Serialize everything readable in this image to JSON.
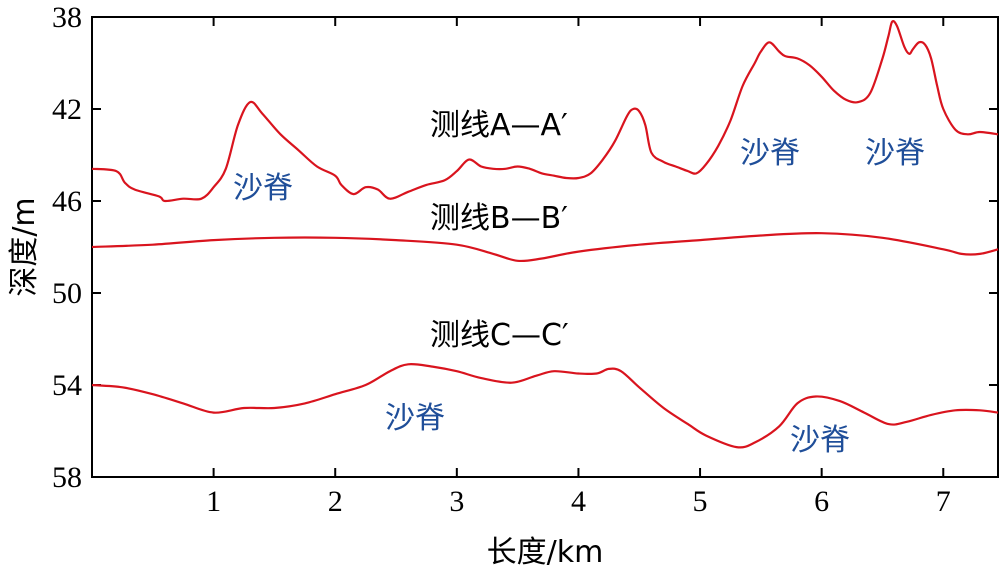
{
  "chart_data": {
    "type": "line",
    "xlabel": "长度/km",
    "ylabel": "深度/m",
    "xlim": [
      0,
      7.45
    ],
    "ylim": [
      38,
      58
    ],
    "y_inverted": true,
    "x_ticks": [
      1,
      2,
      3,
      4,
      5,
      6,
      7
    ],
    "y_ticks": [
      38,
      42,
      46,
      50,
      54,
      58
    ],
    "line_color": "#d9141e",
    "annotation_color": "#1f4e99",
    "series": [
      {
        "name": "测线A—A′",
        "x": [
          0,
          0.2,
          0.27,
          0.35,
          0.55,
          0.6,
          0.75,
          0.9,
          1.0,
          1.1,
          1.2,
          1.3,
          1.4,
          1.55,
          1.7,
          1.85,
          2.0,
          2.05,
          2.15,
          2.25,
          2.35,
          2.45,
          2.6,
          2.75,
          2.9,
          3.0,
          3.1,
          3.2,
          3.3,
          3.4,
          3.5,
          3.6,
          3.7,
          3.8,
          3.9,
          4.0,
          4.1,
          4.2,
          4.3,
          4.4,
          4.45,
          4.5,
          4.55,
          4.6,
          4.7,
          4.8,
          4.9,
          4.97,
          5.05,
          5.15,
          5.25,
          5.35,
          5.45,
          5.5,
          5.57,
          5.65,
          5.7,
          5.8,
          5.9,
          6.0,
          6.1,
          6.2,
          6.3,
          6.4,
          6.5,
          6.55,
          6.58,
          6.62,
          6.68,
          6.72,
          6.75,
          6.8,
          6.85,
          6.9,
          6.95,
          7.0,
          7.1,
          7.2,
          7.3,
          7.45
        ],
        "y": [
          44.6,
          44.7,
          45.2,
          45.5,
          45.8,
          46.0,
          45.9,
          45.9,
          45.4,
          44.6,
          42.7,
          41.7,
          42.2,
          43.1,
          43.8,
          44.5,
          44.9,
          45.3,
          45.7,
          45.4,
          45.5,
          45.9,
          45.6,
          45.3,
          45.1,
          44.7,
          44.2,
          44.5,
          44.6,
          44.6,
          44.5,
          44.6,
          44.8,
          44.9,
          45.0,
          45.0,
          44.8,
          44.2,
          43.4,
          42.3,
          42.0,
          42.1,
          42.7,
          43.9,
          44.3,
          44.5,
          44.7,
          44.8,
          44.4,
          43.6,
          42.5,
          41.0,
          40.0,
          39.5,
          39.1,
          39.5,
          39.7,
          39.8,
          40.1,
          40.6,
          41.2,
          41.6,
          41.7,
          41.3,
          39.8,
          38.8,
          38.2,
          38.4,
          39.3,
          39.6,
          39.4,
          39.1,
          39.2,
          39.8,
          41.0,
          42.0,
          42.9,
          43.1,
          43.0,
          43.1
        ]
      },
      {
        "name": "测线B—B′",
        "x": [
          0,
          0.5,
          1.0,
          1.5,
          2.0,
          2.5,
          3.0,
          3.3,
          3.5,
          3.7,
          4.0,
          4.5,
          5.0,
          5.5,
          6.0,
          6.5,
          7.0,
          7.15,
          7.3,
          7.45
        ],
        "y": [
          48.0,
          47.9,
          47.7,
          47.6,
          47.6,
          47.7,
          47.9,
          48.3,
          48.6,
          48.5,
          48.2,
          47.9,
          47.7,
          47.5,
          47.4,
          47.6,
          48.1,
          48.3,
          48.3,
          48.1
        ],
        "label": "测线B—B′"
      },
      {
        "name": "测线C—C′",
        "x": [
          0,
          0.25,
          0.5,
          0.75,
          1.0,
          1.25,
          1.5,
          1.75,
          2.0,
          2.25,
          2.45,
          2.6,
          2.8,
          3.0,
          3.2,
          3.45,
          3.65,
          3.8,
          4.0,
          4.15,
          4.25,
          4.35,
          4.5,
          4.7,
          4.9,
          5.05,
          5.3,
          5.45,
          5.65,
          5.8,
          5.95,
          6.15,
          6.35,
          6.55,
          6.7,
          6.9,
          7.1,
          7.3,
          7.45
        ],
        "y": [
          54.0,
          54.1,
          54.4,
          54.8,
          55.2,
          55.0,
          55.0,
          54.8,
          54.4,
          54.0,
          53.4,
          53.1,
          53.2,
          53.4,
          53.7,
          53.9,
          53.6,
          53.4,
          53.5,
          53.5,
          53.3,
          53.4,
          54.1,
          55.0,
          55.7,
          56.2,
          56.7,
          56.5,
          55.8,
          54.8,
          54.5,
          54.7,
          55.2,
          55.7,
          55.6,
          55.3,
          55.1,
          55.1,
          55.2
        ]
      }
    ],
    "series_labels": [
      "测线A—A′",
      "测线B—B′",
      "测线C—C′"
    ],
    "annotations": [
      "沙脊",
      "沙脊",
      "沙脊",
      "沙脊",
      "沙脊"
    ]
  }
}
